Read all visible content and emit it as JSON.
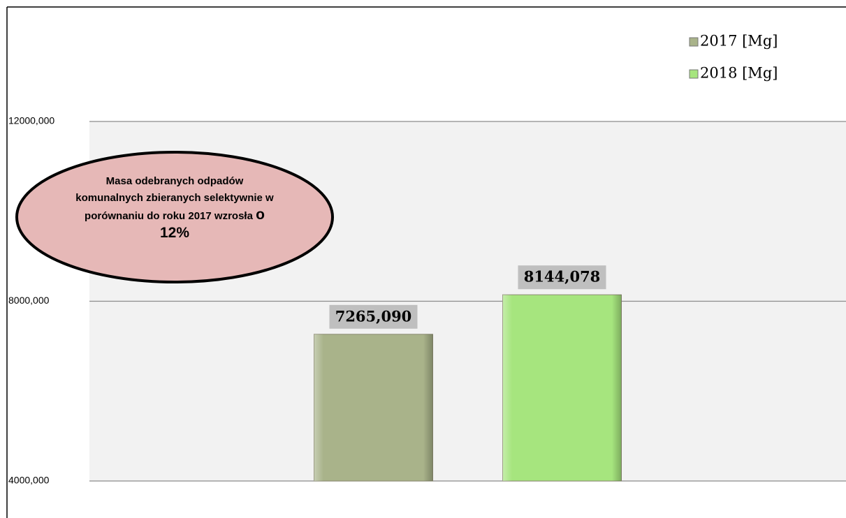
{
  "chart_data": {
    "type": "bar",
    "categories": [
      null
    ],
    "series": [
      {
        "name": "2017 [Mg]",
        "color": "#a9b38a",
        "values": [
          7265.09
        ],
        "value_labels": [
          "7265,090"
        ]
      },
      {
        "name": "2018 [Mg]",
        "color": "#a6e57e",
        "values": [
          8144.078
        ],
        "value_labels": [
          "8144,078"
        ]
      }
    ],
    "ylim": [
      4000,
      12000
    ],
    "yticks": [
      {
        "value": 4000,
        "label": "4000,000"
      },
      {
        "value": 8000,
        "label": "8000,000"
      },
      {
        "value": 12000,
        "label": "12000,000"
      }
    ],
    "grid": true,
    "legend": "top-right",
    "annotation": {
      "text": "Masa odebranych odpadów komunalnych zbieranych selektywnie w porównaniu do roku 2017 wzrosła",
      "emphasis": "o 12%"
    }
  }
}
